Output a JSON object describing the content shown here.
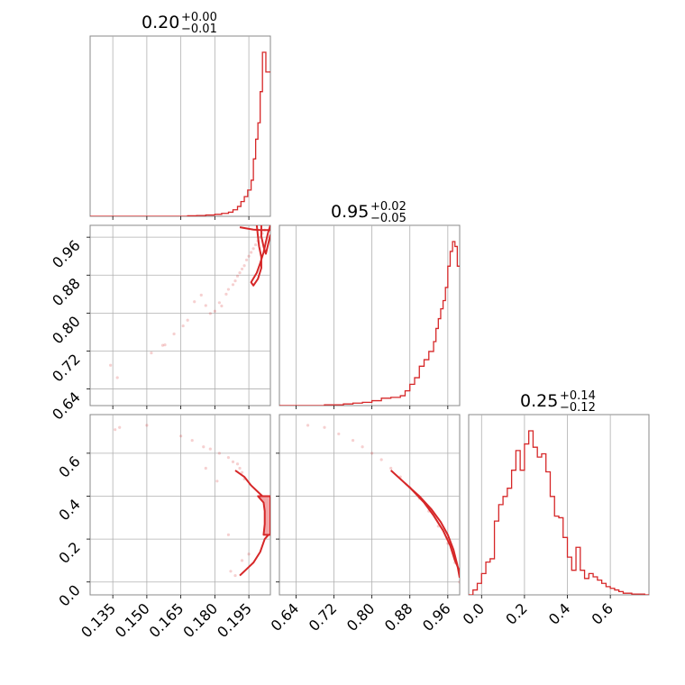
{
  "colors": {
    "series": "#d62728",
    "fill": "#f3a6a8",
    "grid": "#b0b0b0",
    "frame": "#888888"
  },
  "chart_data": {
    "type": "corner",
    "parameters": 3,
    "grid": true,
    "titles": [
      {
        "median": "0.20",
        "plus": "+0.00",
        "minus": "−0.01"
      },
      {
        "median": "0.95",
        "plus": "+0.02",
        "minus": "−0.05"
      },
      {
        "median": "0.25",
        "plus": "+0.14",
        "minus": "−0.12"
      }
    ],
    "ranges": [
      [
        0.125,
        0.2045
      ],
      [
        0.605,
        0.985
      ],
      [
        -0.06,
        0.78
      ]
    ],
    "ticks": [
      [
        "0.135",
        "0.150",
        "0.165",
        "0.180",
        "0.195"
      ],
      [
        "0.64",
        "0.72",
        "0.80",
        "0.88",
        "0.96"
      ],
      [
        "0.0",
        "0.2",
        "0.4",
        "0.6"
      ]
    ],
    "tick_values": [
      [
        0.135,
        0.15,
        0.165,
        0.18,
        0.195
      ],
      [
        0.64,
        0.72,
        0.8,
        0.88,
        0.96
      ],
      [
        0.0,
        0.2,
        0.4,
        0.6
      ]
    ],
    "hist_p1": {
      "bin_edges": [
        0.125,
        0.168,
        0.172,
        0.176,
        0.18,
        0.183,
        0.186,
        0.188,
        0.19,
        0.1915,
        0.193,
        0.1945,
        0.196,
        0.197,
        0.198,
        0.199,
        0.2,
        0.201,
        0.2025,
        0.2035,
        0.2045
      ],
      "heights": [
        0.0,
        0.003,
        0.005,
        0.008,
        0.012,
        0.018,
        0.025,
        0.04,
        0.06,
        0.09,
        0.12,
        0.16,
        0.22,
        0.35,
        0.47,
        0.57,
        0.76,
        1.0,
        0.88,
        0.88
      ]
    },
    "hist_p2": {
      "bin_edges": [
        0.605,
        0.7,
        0.74,
        0.76,
        0.78,
        0.8,
        0.82,
        0.84,
        0.86,
        0.87,
        0.88,
        0.89,
        0.9,
        0.91,
        0.92,
        0.93,
        0.935,
        0.94,
        0.945,
        0.95,
        0.955,
        0.96,
        0.965,
        0.97,
        0.975,
        0.98,
        0.985
      ],
      "heights": [
        0.0,
        0.005,
        0.01,
        0.015,
        0.02,
        0.03,
        0.045,
        0.05,
        0.06,
        0.09,
        0.13,
        0.17,
        0.24,
        0.28,
        0.33,
        0.39,
        0.47,
        0.53,
        0.59,
        0.64,
        0.72,
        0.85,
        0.94,
        1.0,
        0.97,
        0.85
      ]
    },
    "hist_p3": {
      "bin_edges": [
        -0.06,
        -0.04,
        -0.02,
        0.0,
        0.02,
        0.04,
        0.06,
        0.08,
        0.1,
        0.12,
        0.14,
        0.16,
        0.18,
        0.2,
        0.22,
        0.24,
        0.26,
        0.28,
        0.3,
        0.32,
        0.34,
        0.36,
        0.38,
        0.4,
        0.42,
        0.44,
        0.46,
        0.48,
        0.5,
        0.52,
        0.54,
        0.56,
        0.58,
        0.6,
        0.62,
        0.64,
        0.66,
        0.68,
        0.7,
        0.72,
        0.74,
        0.76,
        0.78
      ],
      "heights": [
        0.0,
        0.03,
        0.07,
        0.13,
        0.2,
        0.22,
        0.45,
        0.55,
        0.6,
        0.65,
        0.76,
        0.88,
        0.76,
        0.92,
        1.0,
        0.9,
        0.84,
        0.86,
        0.75,
        0.6,
        0.48,
        0.47,
        0.35,
        0.23,
        0.15,
        0.29,
        0.15,
        0.1,
        0.13,
        0.11,
        0.09,
        0.07,
        0.05,
        0.04,
        0.03,
        0.02,
        0.01,
        0.01,
        0.005,
        0.005,
        0.005,
        0.0
      ]
    },
    "joint_p1_p2": {
      "scatter": [
        [
          0.134,
          0.69
        ],
        [
          0.137,
          0.664
        ],
        [
          0.152,
          0.716
        ],
        [
          0.157,
          0.732
        ],
        [
          0.158,
          0.733
        ],
        [
          0.162,
          0.756
        ],
        [
          0.166,
          0.773
        ],
        [
          0.168,
          0.785
        ],
        [
          0.171,
          0.824
        ],
        [
          0.174,
          0.838
        ],
        [
          0.176,
          0.816
        ],
        [
          0.178,
          0.799
        ],
        [
          0.18,
          0.804
        ],
        [
          0.182,
          0.822
        ],
        [
          0.183,
          0.815
        ],
        [
          0.185,
          0.84
        ],
        [
          0.186,
          0.85
        ],
        [
          0.188,
          0.86
        ],
        [
          0.189,
          0.868
        ],
        [
          0.19,
          0.878
        ],
        [
          0.191,
          0.885
        ],
        [
          0.192,
          0.893
        ],
        [
          0.193,
          0.9
        ],
        [
          0.194,
          0.912
        ],
        [
          0.195,
          0.92
        ],
        [
          0.196,
          0.928
        ],
        [
          0.197,
          0.936
        ],
        [
          0.198,
          0.944
        ],
        [
          0.199,
          0.952
        ],
        [
          0.2,
          0.96
        ],
        [
          0.201,
          0.968
        ],
        [
          0.202,
          0.975
        ]
      ],
      "contour_outer": [
        [
          0.1985,
          0.985
        ],
        [
          0.199,
          0.962
        ],
        [
          0.1995,
          0.941
        ],
        [
          0.2005,
          0.918
        ],
        [
          0.2005,
          0.895
        ],
        [
          0.199,
          0.872
        ],
        [
          0.197,
          0.858
        ],
        [
          0.196,
          0.865
        ],
        [
          0.1985,
          0.885
        ],
        [
          0.2,
          0.905
        ],
        [
          0.2015,
          0.928
        ],
        [
          0.2025,
          0.95
        ],
        [
          0.2035,
          0.97
        ],
        [
          0.2045,
          0.985
        ]
      ],
      "contour_inner": [
        [
          0.2005,
          0.985
        ],
        [
          0.2005,
          0.962
        ],
        [
          0.2015,
          0.94
        ],
        [
          0.2025,
          0.925
        ],
        [
          0.2035,
          0.945
        ],
        [
          0.2045,
          0.965
        ]
      ],
      "contour_top": [
        [
          0.191,
          0.981
        ],
        [
          0.197,
          0.976
        ],
        [
          0.2,
          0.975
        ],
        [
          0.2045,
          0.975
        ]
      ]
    },
    "joint_p1_p3": {
      "scatter": [
        [
          0.136,
          0.71
        ],
        [
          0.138,
          0.72
        ],
        [
          0.15,
          0.73
        ],
        [
          0.165,
          0.68
        ],
        [
          0.17,
          0.66
        ],
        [
          0.175,
          0.63
        ],
        [
          0.178,
          0.62
        ],
        [
          0.182,
          0.6
        ],
        [
          0.186,
          0.58
        ],
        [
          0.188,
          0.56
        ],
        [
          0.19,
          0.55
        ],
        [
          0.191,
          0.53
        ],
        [
          0.192,
          0.51
        ],
        [
          0.193,
          0.48
        ],
        [
          0.176,
          0.53
        ],
        [
          0.181,
          0.47
        ],
        [
          0.186,
          0.22
        ],
        [
          0.187,
          0.05
        ],
        [
          0.189,
          0.03
        ],
        [
          0.192,
          0.1
        ],
        [
          0.195,
          0.13
        ]
      ],
      "contour_upper": [
        [
          0.189,
          0.52
        ],
        [
          0.193,
          0.49
        ],
        [
          0.196,
          0.45
        ],
        [
          0.199,
          0.42
        ],
        [
          0.201,
          0.4
        ],
        [
          0.2045,
          0.39
        ]
      ],
      "contour_lower": [
        [
          0.191,
          0.03
        ],
        [
          0.194,
          0.06
        ],
        [
          0.197,
          0.09
        ],
        [
          0.2,
          0.14
        ],
        [
          0.202,
          0.2
        ],
        [
          0.2045,
          0.23
        ]
      ],
      "contour_band": [
        [
          0.199,
          0.4
        ],
        [
          0.2015,
          0.37
        ],
        [
          0.202,
          0.33
        ],
        [
          0.202,
          0.27
        ],
        [
          0.2015,
          0.22
        ],
        [
          0.2045,
          0.22
        ],
        [
          0.2045,
          0.4
        ]
      ]
    },
    "joint_p2_p3": {
      "scatter": [
        [
          0.665,
          0.73
        ],
        [
          0.7,
          0.72
        ],
        [
          0.73,
          0.69
        ],
        [
          0.76,
          0.66
        ],
        [
          0.78,
          0.63
        ],
        [
          0.8,
          0.6
        ],
        [
          0.82,
          0.57
        ],
        [
          0.84,
          0.53
        ],
        [
          0.86,
          0.49
        ],
        [
          0.88,
          0.44
        ],
        [
          0.9,
          0.39
        ],
        [
          0.92,
          0.33
        ],
        [
          0.94,
          0.26
        ],
        [
          0.96,
          0.18
        ],
        [
          0.975,
          0.09
        ],
        [
          0.985,
          0.0
        ]
      ],
      "contour_outer": [
        [
          0.84,
          0.52
        ],
        [
          0.88,
          0.44
        ],
        [
          0.91,
          0.37
        ],
        [
          0.93,
          0.31
        ],
        [
          0.95,
          0.24
        ],
        [
          0.965,
          0.17
        ],
        [
          0.975,
          0.1
        ],
        [
          0.985,
          0.05
        ]
      ],
      "contour_inner": [
        [
          0.87,
          0.46
        ],
        [
          0.9,
          0.4
        ],
        [
          0.925,
          0.34
        ],
        [
          0.945,
          0.28
        ],
        [
          0.96,
          0.22
        ],
        [
          0.972,
          0.15
        ],
        [
          0.98,
          0.08
        ],
        [
          0.985,
          0.02
        ]
      ]
    }
  }
}
